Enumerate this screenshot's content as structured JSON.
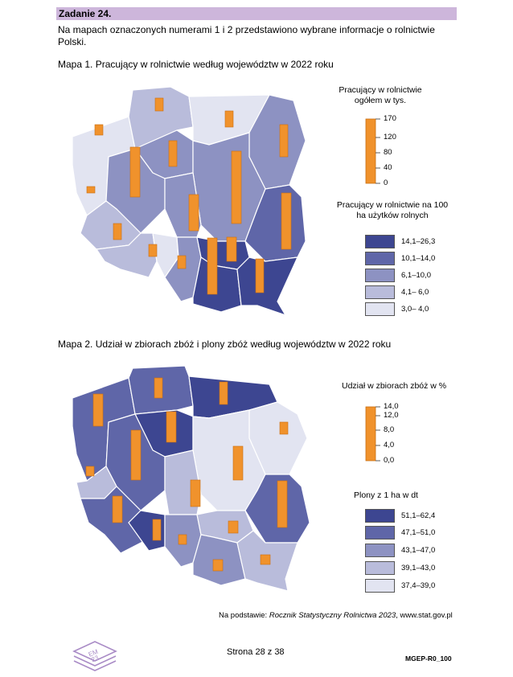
{
  "header": {
    "task": "Zadanie 24."
  },
  "intro": "Na mapach oznaczonych numerami 1 i 2 przedstawiono wybrane informacje o rolnictwie Polski.",
  "map1": {
    "title": "Mapa 1. Pracujący w rolnictwie według województw w 2022 roku",
    "bar_legend_title": "Pracujący w rolnictwie ogółem w tys.",
    "bar_scale": [
      "170",
      "120",
      "80",
      "40",
      "0"
    ],
    "choropleth_legend_title": "Pracujący w rolnictwie na 100 ha użytków rolnych",
    "classes": [
      {
        "label": "14,1–26,3",
        "color": "#3d4691"
      },
      {
        "label": "10,1–14,0",
        "color": "#5f66a8"
      },
      {
        "label": "6,1–10,0",
        "color": "#8d92c2"
      },
      {
        "label": "4,1– 6,0",
        "color": "#b9bcdb"
      },
      {
        "label": "3,0– 4,0",
        "color": "#e2e4f1"
      }
    ]
  },
  "map2": {
    "title": "Mapa 2. Udział w zbiorach zbóż i plony zbóż według województw w 2022 roku",
    "bar_legend_title": "Udział w zbiorach zbóż w %",
    "bar_scale": [
      "14,0",
      "12,0",
      "8,0",
      "4,0",
      "0,0"
    ],
    "choropleth_legend_title": "Plony z 1 ha w dt",
    "classes": [
      {
        "label": "51,1–62,4",
        "color": "#3d4691"
      },
      {
        "label": "47,1–51,0",
        "color": "#5f66a8"
      },
      {
        "label": "43,1–47,0",
        "color": "#8d92c2"
      },
      {
        "label": "39,1–43,0",
        "color": "#b9bcdb"
      },
      {
        "label": "37,4–39,0",
        "color": "#e2e4f1"
      }
    ]
  },
  "colors": {
    "bar": "#f0922c",
    "header_bg": "#cdb6db"
  },
  "source": {
    "prefix": "Na podstawie: ",
    "title": "Rocznik Statystyczny Rolnictwa 2023",
    "suffix": ", www.stat.gov.pl"
  },
  "footer": {
    "page": "Strona 28 z 38",
    "code": "MGEP-R0_100",
    "logo_text": "EM 23"
  }
}
